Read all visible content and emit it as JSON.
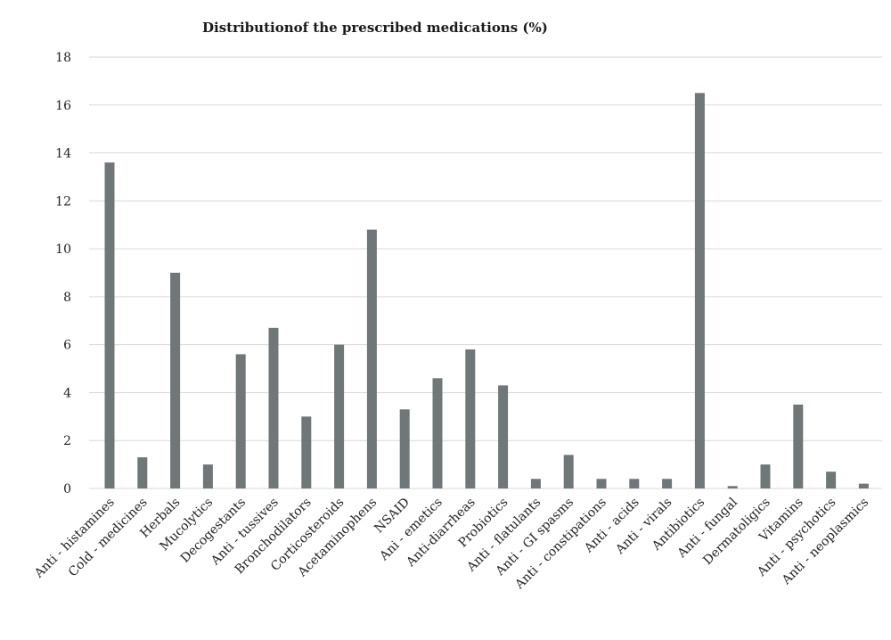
{
  "chart_data": {
    "type": "bar",
    "title": "Distributionof  the prescribed medications (%)",
    "xlabel": "",
    "ylabel": "",
    "ylim": [
      0,
      18
    ],
    "yticks": [
      0,
      2,
      4,
      6,
      8,
      10,
      12,
      14,
      16,
      18
    ],
    "grid": true,
    "bar_color": "#6f7778",
    "categories": [
      "Anti - histamines",
      "Cold - medicines",
      "Herbals",
      "Mucolytics",
      "Decogestants",
      "Anti - tussives",
      "Bronchodilators",
      "Corticosteroids",
      "Acetaminophens",
      "NSAID",
      "Ani - emetics",
      "Anti-diarrheas",
      "Probiotics",
      "Anti - flatulants",
      "Anti - GI spasms",
      "Anti - constipations",
      "Anti - acids",
      "Anti - virals",
      "Antibiotics",
      "Anti - fungal",
      "Dermatoligics",
      "Vitamins",
      "Anti - psychotics",
      "Anti - neoplasmics"
    ],
    "values": [
      13.6,
      1.3,
      9.0,
      1.0,
      5.6,
      6.7,
      3.0,
      6.0,
      10.8,
      3.3,
      4.6,
      5.8,
      4.3,
      0.4,
      1.4,
      0.4,
      0.4,
      0.4,
      16.5,
      0.1,
      1.0,
      3.5,
      0.7,
      0.2
    ]
  }
}
